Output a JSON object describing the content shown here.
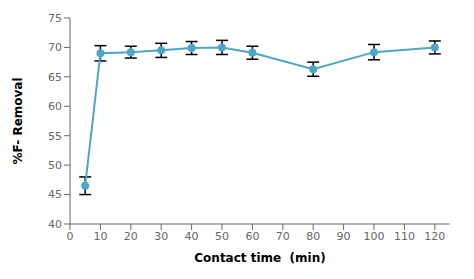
{
  "chart_data": {
    "type": "line",
    "xlabel": "Contact time  (min)",
    "ylabel": "%F- Removal",
    "x": [
      5,
      10,
      20,
      30,
      40,
      50,
      60,
      80,
      100,
      120
    ],
    "series": [
      {
        "values": [
          46.5,
          69.0,
          69.2,
          69.5,
          69.9,
          70.0,
          69.1,
          66.3,
          69.2,
          70.0
        ],
        "yerr": [
          1.5,
          1.3,
          1.0,
          1.2,
          1.1,
          1.2,
          1.1,
          1.2,
          1.3,
          1.1
        ],
        "color": "#4da6c8",
        "marker": "circle"
      }
    ],
    "xlim": [
      0,
      125
    ],
    "ylim": [
      40,
      75
    ],
    "xticks": [
      0,
      10,
      20,
      30,
      40,
      50,
      60,
      70,
      80,
      90,
      100,
      110,
      120
    ],
    "yticks": [
      40,
      45,
      50,
      55,
      60,
      65,
      70,
      75
    ],
    "grid": false
  }
}
